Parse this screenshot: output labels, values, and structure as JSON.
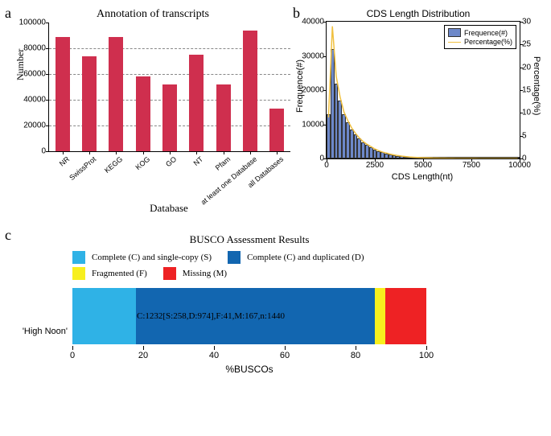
{
  "panel_labels": {
    "a": "a",
    "b": "b",
    "c": "c"
  },
  "panelA": {
    "type": "bar",
    "title": "Annotation of transcripts",
    "xlabel": "Database",
    "ylabel": "Number",
    "categories": [
      "NR",
      "SwissProt",
      "KEGG",
      "KOG",
      "GO",
      "NT",
      "Pfam",
      "at least one Database",
      "all Databases"
    ],
    "values": [
      89000,
      74000,
      88500,
      58000,
      52000,
      75000,
      52000,
      93500,
      33000
    ],
    "bar_color": "#cf2f4e",
    "ylim": [
      0,
      100000
    ],
    "ytick_step": 20000,
    "grid_color": "#888888",
    "label_fontsize": 12,
    "title_fontsize": 14,
    "tick_fontsize": 10,
    "xlabel_rotation_deg": -40
  },
  "panelB": {
    "type": "histogram_with_line",
    "title": "CDS Length Distribution",
    "xlabel": "CDS Length(nt)",
    "ylabel_left": "Frequence(#)",
    "ylabel_right": "Percentage(%)",
    "xlim": [
      0,
      10000
    ],
    "xtick_step": 2500,
    "ylim_left": [
      0,
      40000
    ],
    "ytick_left_step": 10000,
    "ylim_right": [
      0,
      30
    ],
    "ytick_right_step": 5,
    "bin_width": 200,
    "bin_edges_start": 0,
    "bar_color": "#6d88c9",
    "bar_border_color": "#333333",
    "line_color": "#f0c040",
    "line_width": 1.5,
    "freq_values": [
      13000,
      32000,
      22000,
      17000,
      13000,
      10500,
      8500,
      7000,
      5800,
      4800,
      4000,
      3300,
      2700,
      2200,
      1800,
      1500,
      1200,
      1000,
      800,
      650,
      520,
      420,
      340,
      280,
      230,
      190,
      160,
      130,
      110,
      90,
      75,
      62,
      51,
      42,
      35,
      29,
      24,
      20,
      17,
      14,
      12,
      10,
      8,
      7,
      6,
      5,
      4,
      3,
      3,
      2
    ],
    "pct_values": [
      9.0,
      29.0,
      18.0,
      13.5,
      10.2,
      8.3,
      6.7,
      5.5,
      4.5,
      3.7,
      3.1,
      2.6,
      2.1,
      1.7,
      1.4,
      1.2,
      0.95,
      0.78,
      0.63,
      0.51,
      0.41,
      0.33,
      0.27,
      0.22,
      0.18,
      0.15,
      0.13,
      0.1,
      0.09,
      0.07,
      0.06,
      0.05,
      0.04,
      0.033,
      0.027,
      0.022,
      0.018,
      0.015,
      0.013,
      0.011,
      0.009,
      0.008,
      0.006,
      0.005,
      0.005,
      0.004,
      0.003,
      0.002,
      0.002,
      0.002
    ],
    "legend": {
      "freq": "Frequence(#)",
      "pct": "Percentage(%)"
    },
    "title_fontsize": 12,
    "label_fontsize": 11,
    "tick_fontsize": 10
  },
  "panelC": {
    "type": "stacked_bar_horizontal",
    "title": "BUSCO Assessment Results",
    "xlabel": "%BUSCOs",
    "category_label": "'High Noon'",
    "xlim": [
      0,
      100
    ],
    "xtick_step": 20,
    "segments": [
      {
        "key": "S",
        "label": "Complete (C) and single-copy (S)",
        "value": 258,
        "pct": 17.92,
        "color": "#2fb2e6"
      },
      {
        "key": "D",
        "label": "Complete (C) and duplicated (D)",
        "value": 974,
        "pct": 67.64,
        "color": "#1266b0"
      },
      {
        "key": "F",
        "label": "Fragmented (F)",
        "value": 41,
        "pct": 2.85,
        "color": "#f7ef1e"
      },
      {
        "key": "M",
        "label": "Missing (M)",
        "value": 167,
        "pct": 11.6,
        "color": "#ee2224"
      }
    ],
    "n_total": 1440,
    "bar_text": "C:1232[S:258,D:974],F:41,M:167,n:1440",
    "title_fontsize": 13,
    "label_fontsize": 12,
    "tick_fontsize": 11,
    "legend_fontsize": 11
  }
}
